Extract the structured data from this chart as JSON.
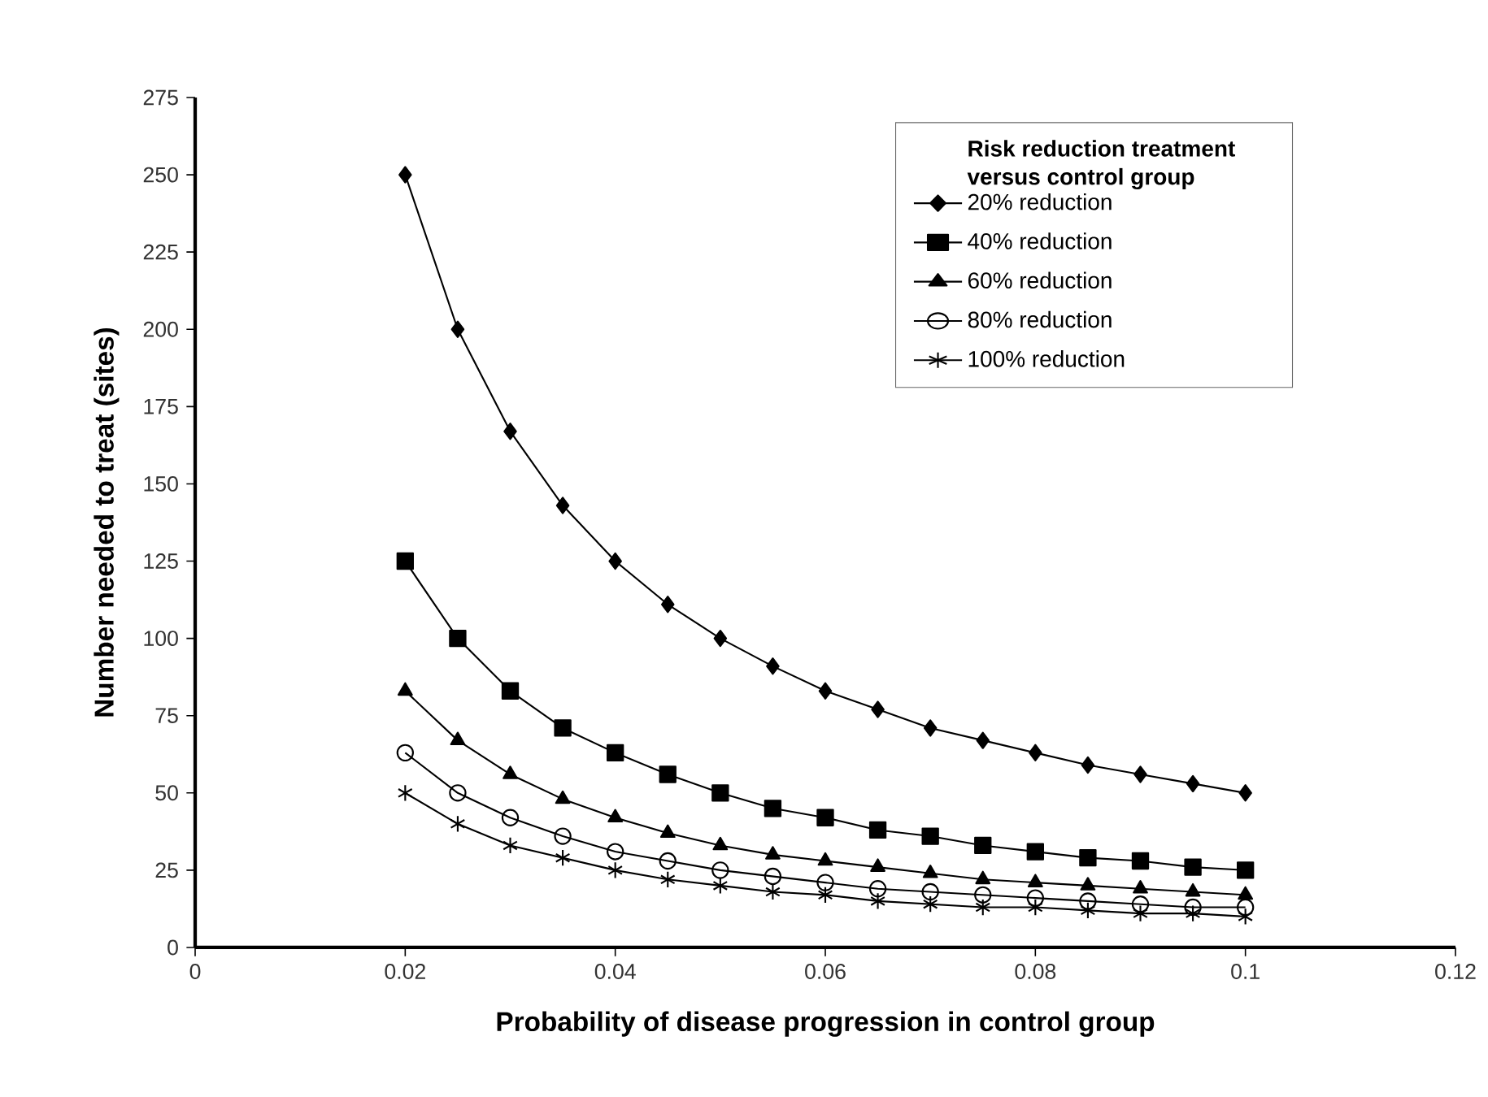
{
  "chart_data": {
    "type": "line",
    "xlabel": "Probability of disease progression in control group",
    "ylabel": "Number needed to treat (sites)",
    "legend_title": "Risk reduction treatment versus control group",
    "x": [
      0.02,
      0.025,
      0.03,
      0.035,
      0.04,
      0.045,
      0.05,
      0.055,
      0.06,
      0.065,
      0.07,
      0.075,
      0.08,
      0.085,
      0.09,
      0.095,
      0.1
    ],
    "series": [
      {
        "name": "20% reduction",
        "color": "#000000",
        "marker": "diamond",
        "values": [
          250,
          200,
          167,
          143,
          125,
          111,
          100,
          91,
          83,
          77,
          71,
          67,
          63,
          59,
          56,
          53,
          50
        ]
      },
      {
        "name": "40% reduction",
        "color": "#000000",
        "marker": "square",
        "values": [
          125,
          100,
          83,
          71,
          63,
          56,
          50,
          45,
          42,
          38,
          36,
          33,
          31,
          29,
          28,
          26,
          25
        ]
      },
      {
        "name": "60% reduction",
        "color": "#000000",
        "marker": "triangle",
        "values": [
          83,
          67,
          56,
          48,
          42,
          37,
          33,
          30,
          28,
          26,
          24,
          22,
          21,
          20,
          19,
          18,
          17
        ]
      },
      {
        "name": "80% reduction",
        "color": "#000000",
        "marker": "circle",
        "values": [
          63,
          50,
          42,
          36,
          31,
          28,
          25,
          23,
          21,
          19,
          18,
          17,
          16,
          15,
          14,
          13,
          13
        ]
      },
      {
        "name": "100% reduction",
        "color": "#000000",
        "marker": "cross",
        "values": [
          50,
          40,
          33,
          29,
          25,
          22,
          20,
          18,
          17,
          15,
          14,
          13,
          13,
          12,
          11,
          11,
          10
        ]
      }
    ],
    "xlim": [
      0,
      0.12
    ],
    "xticks": [
      0,
      0.02,
      0.04,
      0.06,
      0.08,
      0.1,
      0.12
    ],
    "ylim": [
      0,
      275
    ],
    "yticks": [
      0,
      25,
      50,
      75,
      100,
      125,
      150,
      175,
      200,
      225,
      250,
      275
    ],
    "grid": false,
    "legend": "top right",
    "line_style": "solid"
  }
}
